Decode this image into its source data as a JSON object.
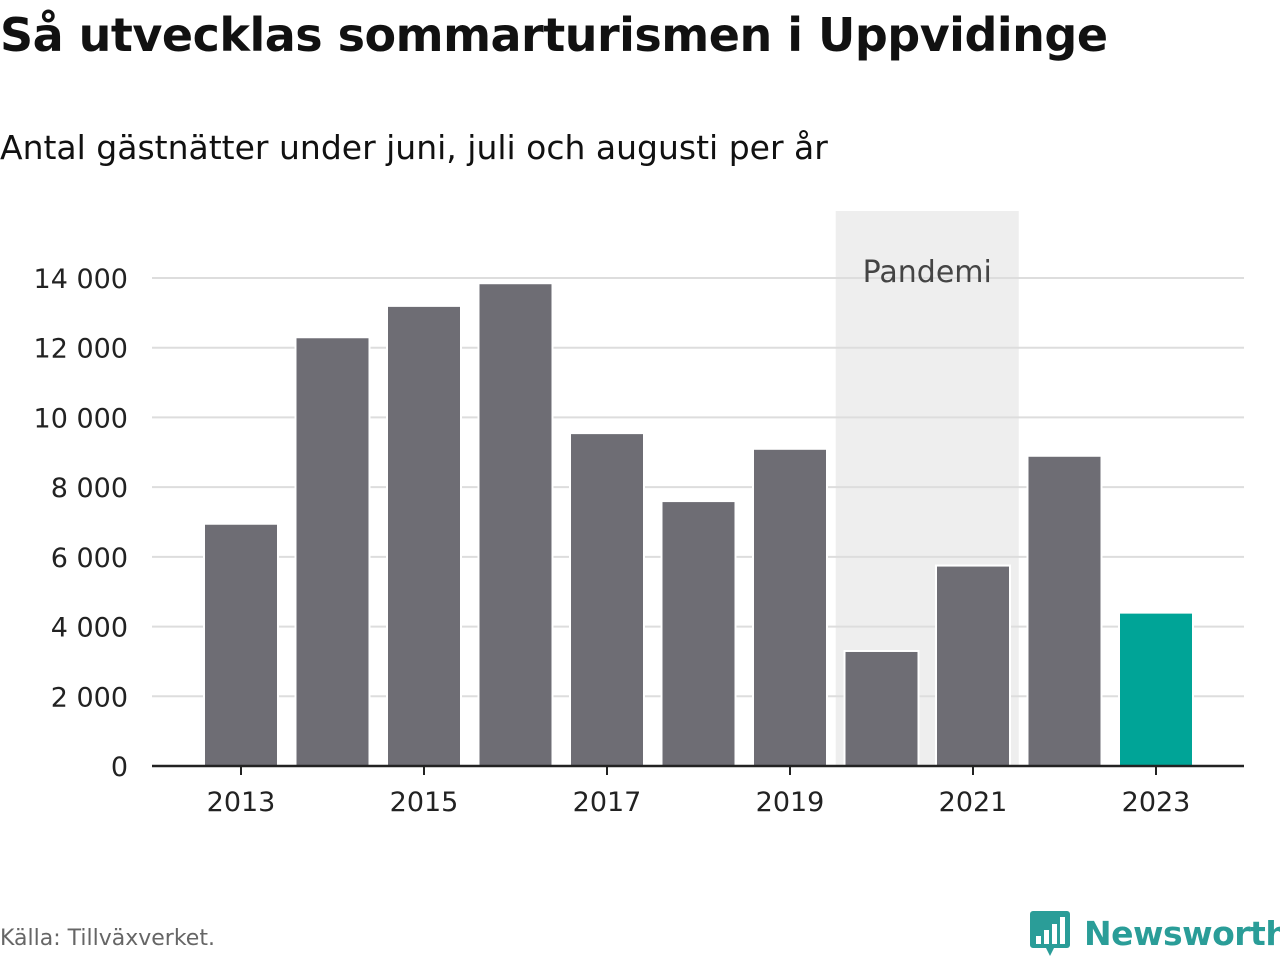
{
  "header": {
    "title": "Så utvecklas sommarturismen i Uppvidinge",
    "subtitle": "Antal gästnätter under juni, juli och augusti per år"
  },
  "footer": {
    "source": "Källa: Tillväxverket.",
    "brand": "Newsworthy",
    "brand_icon": "bar-chart-speech-bubble-icon"
  },
  "colors": {
    "bar": "#6e6d74",
    "highlight_bar": "#00a497",
    "band": "#eeeeee",
    "grid": "#dddddd",
    "axis": "#222222",
    "brand": "#2a9d98"
  },
  "chart_data": {
    "type": "bar",
    "title": "Så utvecklas sommarturismen i Uppvidinge",
    "subtitle": "Antal gästnätter under juni, juli och augusti per år",
    "categories": [
      2013,
      2014,
      2015,
      2016,
      2017,
      2018,
      2019,
      2020,
      2021,
      2022,
      2023
    ],
    "values": [
      6950,
      12300,
      13200,
      13850,
      9550,
      7600,
      9100,
      3300,
      5750,
      8900,
      4400
    ],
    "highlight_category": 2023,
    "xlabel": "",
    "ylabel": "",
    "ylim": [
      0,
      14000
    ],
    "yticks": [
      0,
      2000,
      4000,
      6000,
      8000,
      10000,
      12000,
      14000
    ],
    "ytick_labels": [
      "0",
      "2 000",
      "4 000",
      "6 000",
      "8 000",
      "10 000",
      "12 000",
      "14 000"
    ],
    "xticks": [
      2013,
      2015,
      2017,
      2019,
      2021,
      2023
    ],
    "xtick_labels": [
      "2013",
      "2015",
      "2017",
      "2019",
      "2021",
      "2023"
    ],
    "grid": true,
    "legend": "none",
    "annotations": [
      {
        "type": "band",
        "from": 2020,
        "to": 2021,
        "label": "Pandemi"
      }
    ]
  }
}
